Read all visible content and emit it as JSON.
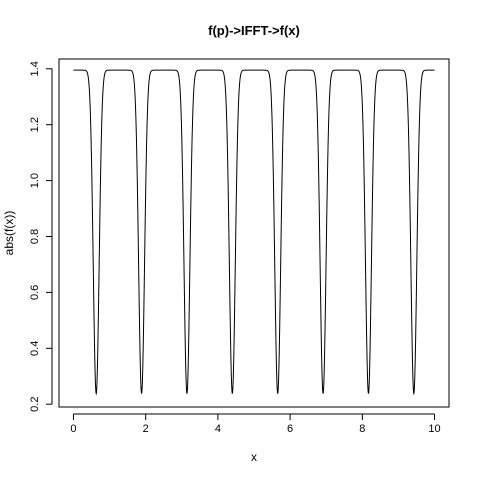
{
  "chart_data": {
    "type": "line",
    "title": "f(p)->IFFT->f(x)",
    "xlabel": "x",
    "ylabel": "abs(f(x))",
    "xlim": [
      -0.4,
      10.4
    ],
    "ylim": [
      0.19,
      1.435
    ],
    "xticks": [
      0,
      2,
      4,
      6,
      8,
      10
    ],
    "yticks": [
      0.2,
      0.4,
      0.6,
      0.8,
      1.0,
      1.2,
      1.4
    ],
    "xtick_labels": [
      "0",
      "2",
      "4",
      "6",
      "8",
      "10"
    ],
    "ytick_labels": [
      "0.2",
      "0.4",
      "0.6",
      "0.8",
      "1.0",
      "1.2",
      "1.4"
    ],
    "grid": false,
    "legend": "none",
    "line_color": "#000000",
    "series": [
      {
        "x_start": 0,
        "x_end": 10,
        "period": 1.2566,
        "max_value": 1.395,
        "min_value": 0.238,
        "first_min_x": 0.63
      }
    ]
  }
}
